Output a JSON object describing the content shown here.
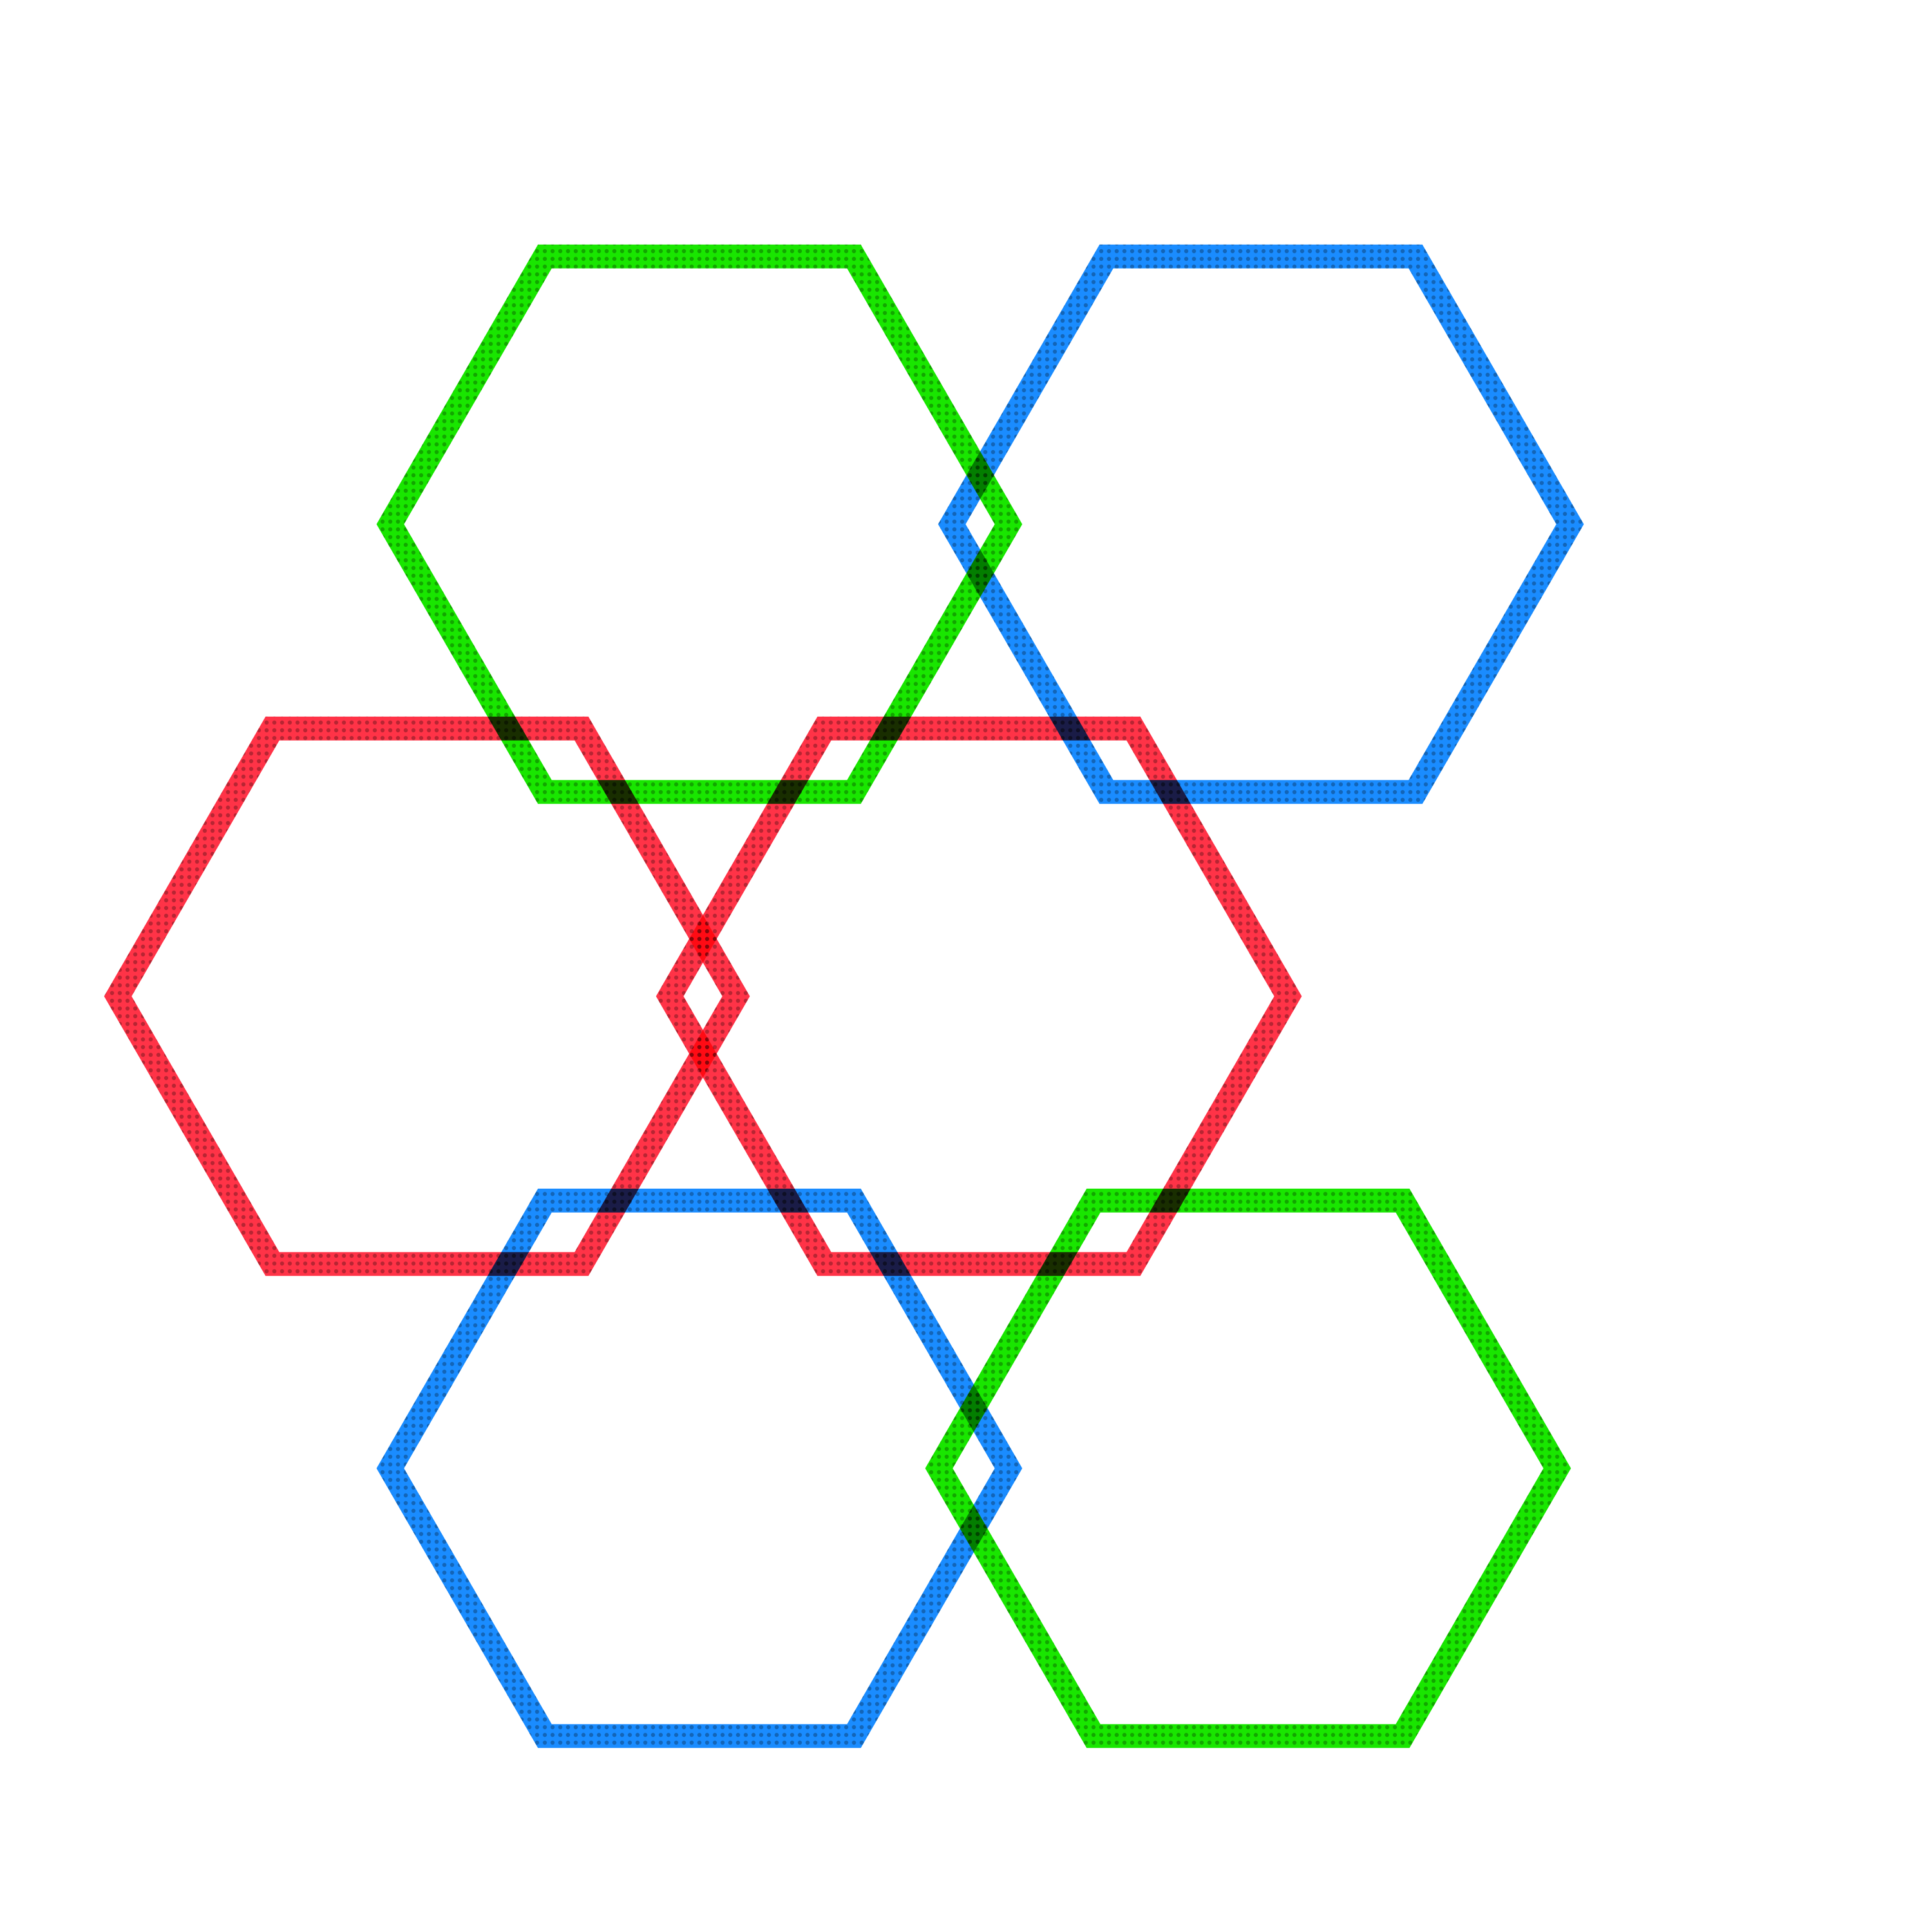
{
  "background": "#ffffff",
  "shapes": [
    {
      "id": "hexagon-green-top-left",
      "shape": "hexagon",
      "color": "#19e600"
    },
    {
      "id": "hexagon-blue-top-right",
      "shape": "hexagon",
      "color": "#1a8cff"
    },
    {
      "id": "hexagon-red-middle-left",
      "shape": "hexagon",
      "color": "#ff3347"
    },
    {
      "id": "hexagon-red-middle-center",
      "shape": "hexagon",
      "color": "#ff3347"
    },
    {
      "id": "hexagon-blue-bottom-left",
      "shape": "hexagon",
      "color": "#1a8cff"
    },
    {
      "id": "hexagon-green-bottom-right",
      "shape": "hexagon",
      "color": "#19e600"
    }
  ]
}
